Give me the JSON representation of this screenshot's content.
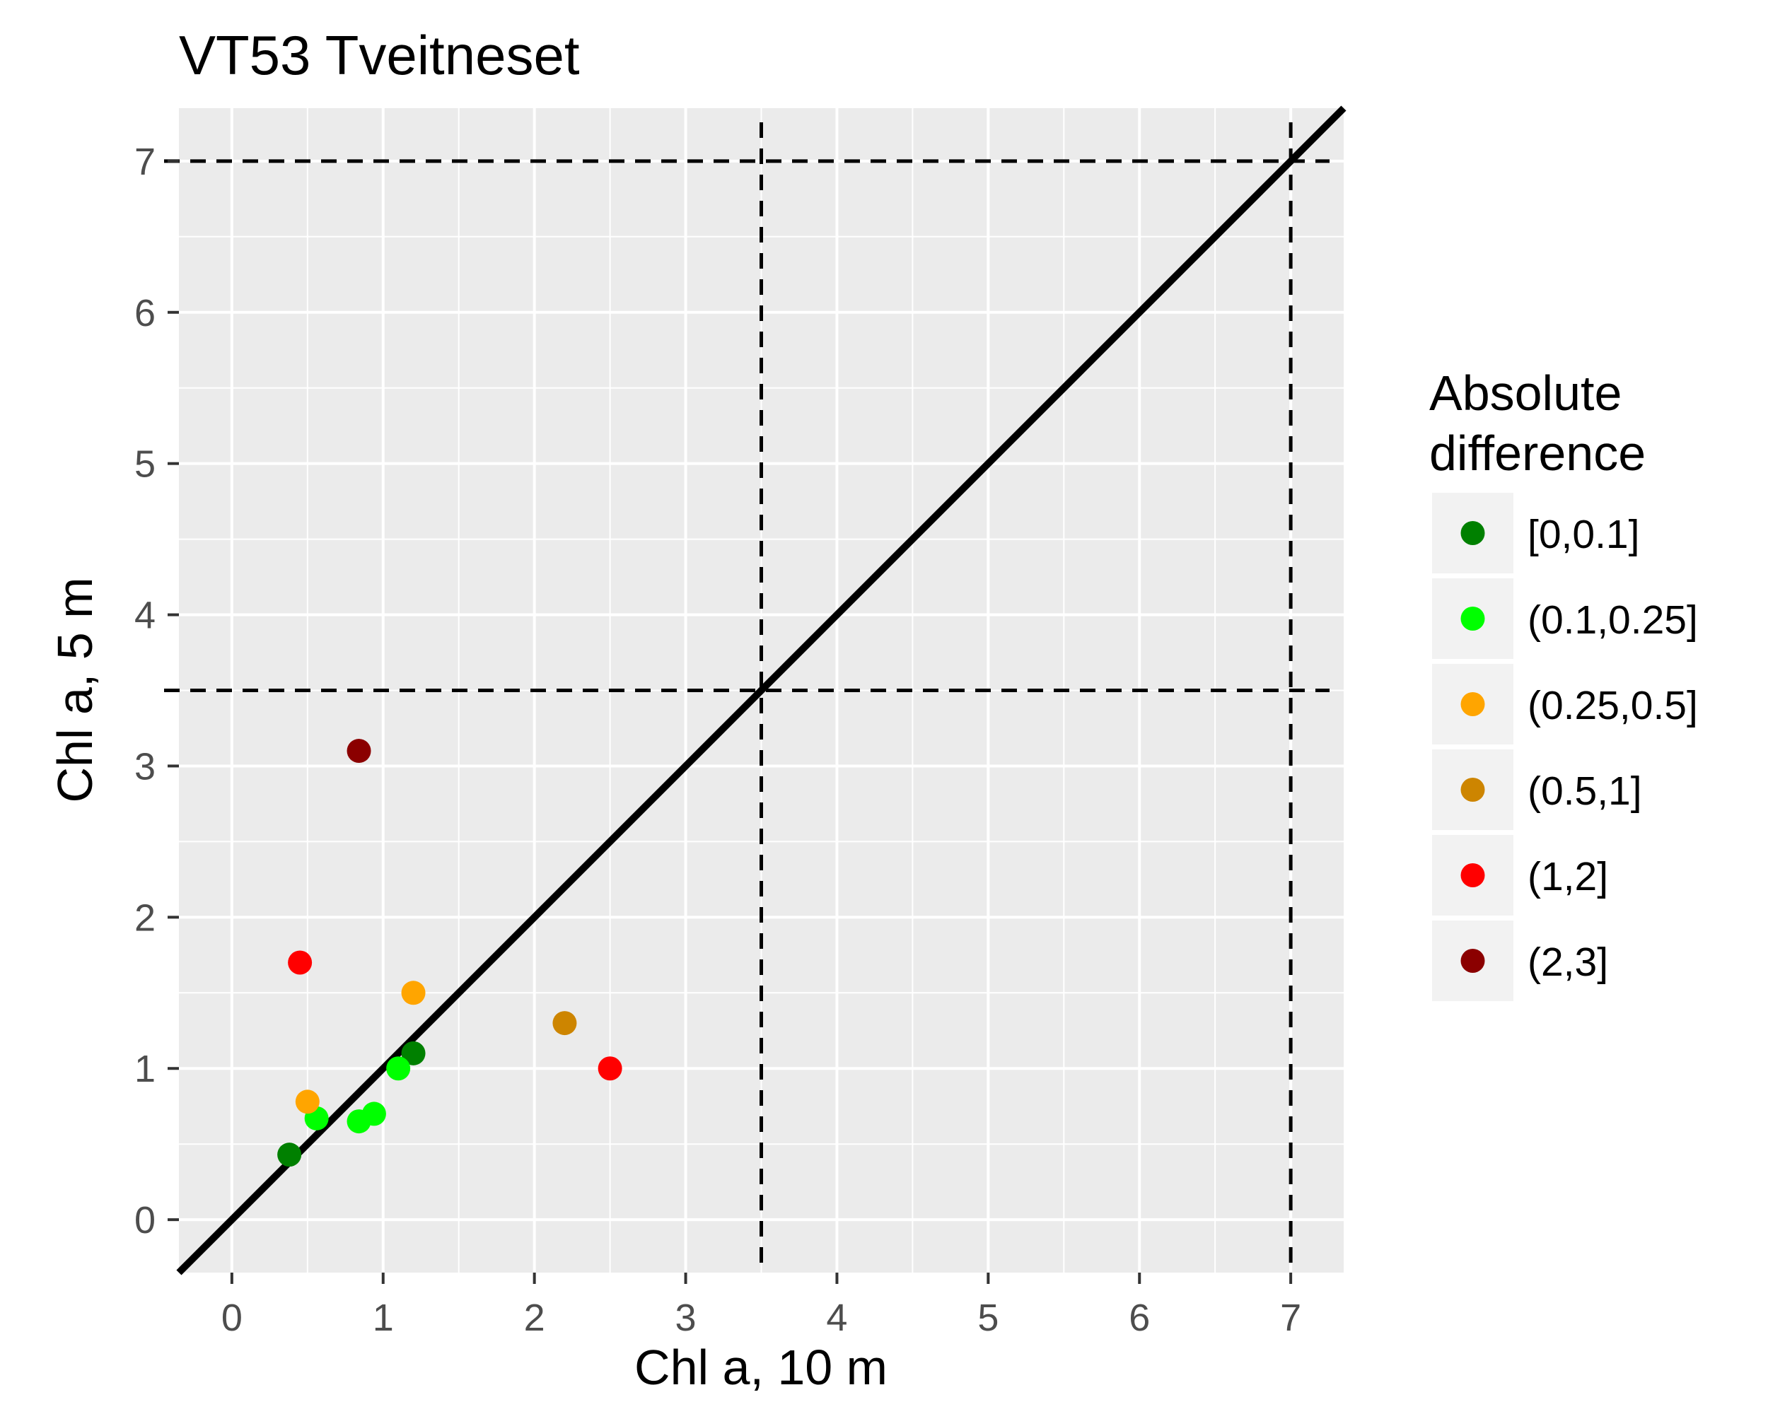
{
  "chart_data": {
    "type": "scatter",
    "title": "VT53 Tveitneset",
    "xlabel": "Chl a, 10 m",
    "ylabel": "Chl a, 5 m",
    "xlim": [
      -0.35,
      7.35
    ],
    "ylim": [
      -0.35,
      7.35
    ],
    "x_ticks": [
      0,
      1,
      2,
      3,
      4,
      5,
      6,
      7
    ],
    "y_ticks": [
      0,
      1,
      2,
      3,
      4,
      5,
      6,
      7
    ],
    "grid": true,
    "panel_background": "#ebebeb",
    "reference_lines": {
      "identity_line": true,
      "dashed_vertical": [
        3.5,
        7
      ],
      "dashed_horizontal": [
        3.5,
        7
      ]
    },
    "legend": {
      "title_lines": [
        "Absolute",
        "difference"
      ],
      "position": "right"
    },
    "categories": [
      {
        "label": "[0,0.1]",
        "color": "#008000"
      },
      {
        "label": "(0.1,0.25]",
        "color": "#00ff00"
      },
      {
        "label": "(0.25,0.5]",
        "color": "#ffa500"
      },
      {
        "label": "(0.5,1]",
        "color": "#cd8500"
      },
      {
        "label": "(1,2]",
        "color": "#ff0000"
      },
      {
        "label": "(2,3]",
        "color": "#8b0000"
      }
    ],
    "points": [
      {
        "x": 0.38,
        "y": 0.43,
        "category": 0
      },
      {
        "x": 1.2,
        "y": 1.1,
        "category": 0
      },
      {
        "x": 0.56,
        "y": 0.67,
        "category": 1
      },
      {
        "x": 0.84,
        "y": 0.65,
        "category": 1
      },
      {
        "x": 0.94,
        "y": 0.7,
        "category": 1
      },
      {
        "x": 1.1,
        "y": 1.0,
        "category": 1
      },
      {
        "x": 0.5,
        "y": 0.78,
        "category": 2
      },
      {
        "x": 1.2,
        "y": 1.5,
        "category": 2
      },
      {
        "x": 2.2,
        "y": 1.3,
        "category": 3
      },
      {
        "x": 0.45,
        "y": 1.7,
        "category": 4
      },
      {
        "x": 2.5,
        "y": 1.0,
        "category": 4
      },
      {
        "x": 0.84,
        "y": 3.1,
        "category": 5
      }
    ]
  }
}
